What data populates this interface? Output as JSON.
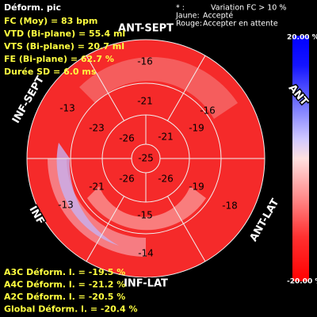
{
  "header": {
    "title": "Déform. pic",
    "lines": [
      "FC (Moy) = 83 bpm",
      "VTD (Bi-plane) = 55.4 ml",
      "VTS (Bi-plane) = 20.7 ml",
      "FE (Bi-plane) = 62.7 %",
      "Durée SD = 6.0 ms"
    ]
  },
  "legend": [
    {
      "key": "* :",
      "text": "Variation FC > 10 %"
    },
    {
      "key": "Jaune:",
      "text": "Accepté"
    },
    {
      "key": "Rouge:",
      "text": "Accepter en attente"
    }
  ],
  "walls": [
    "ANT-SEPT",
    "ANT",
    "ANT-LAT",
    "INF-LAT",
    "INF",
    "INF-SEPT"
  ],
  "segments": {
    "basal": [
      "-16",
      "-16",
      "-18",
      "-14",
      "-13",
      "-13"
    ],
    "mid": [
      "-21",
      "-19",
      "-19",
      "-15",
      "-21",
      "-23"
    ],
    "apical": [
      "-21",
      "-26",
      "-26",
      "-26"
    ],
    "apex": "-25"
  },
  "scale": {
    "max": "20.00 %",
    "min": "-20.00 %"
  },
  "footer": [
    "A3C Déform. l. = -19.5 %",
    "A4C Déform. l. = -21.2 %",
    "A2C Déform. l. = -20.5 %",
    "Global Déform. l. = -20.4 %"
  ]
}
